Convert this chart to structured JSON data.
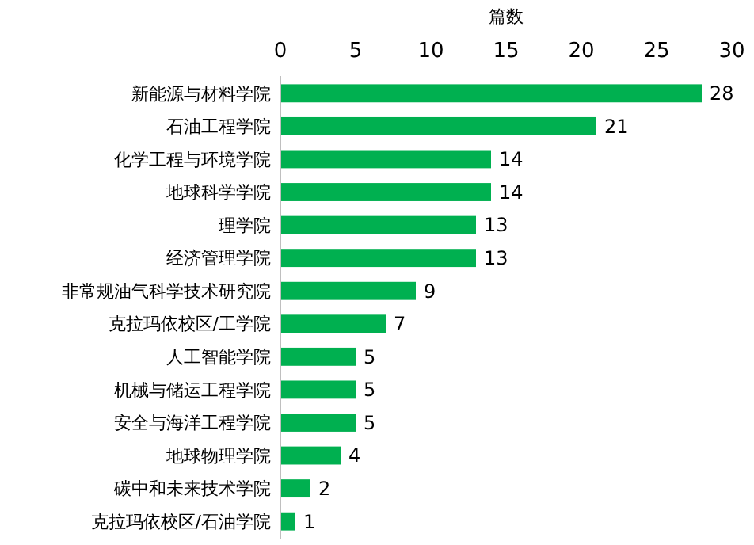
{
  "chart_data": {
    "type": "bar",
    "orientation": "horizontal",
    "xlabel": "篇数",
    "categories": [
      "新能源与材料学院",
      "石油工程学院",
      "化学工程与环境学院",
      "地球科学学院",
      "理学院",
      "经济管理学院",
      "非常规油气科学技术研究院",
      "克拉玛依校区/工学院",
      "人工智能学院",
      "机械与储运工程学院",
      "安全与海洋工程学院",
      "地球物理学院",
      "碳中和未来技术学院",
      "克拉玛依校区/石油学院"
    ],
    "values": [
      28,
      21,
      14,
      14,
      13,
      13,
      9,
      7,
      5,
      5,
      5,
      4,
      2,
      1
    ],
    "color": "#00b050",
    "xlim": [
      0,
      30
    ],
    "xticks": [
      0,
      5,
      10,
      15,
      20,
      25,
      30
    ],
    "data_labels": true
  }
}
